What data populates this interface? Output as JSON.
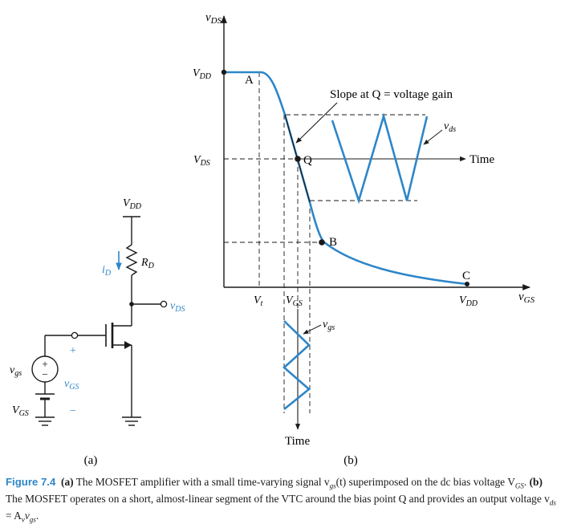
{
  "colors": {
    "blue": "#2e86c8",
    "black": "#1a1a1a"
  },
  "circuit": {
    "vdd_label": "V_DD",
    "rd_label": "R_D",
    "id_label": "i_D",
    "vds_label": "v_DS",
    "vgs_label": "v_GS",
    "vgs_signal_label": "v_gs",
    "vgs_bias_label": "V_GS",
    "plus": "+",
    "minus": "−",
    "panel_label": "(a)"
  },
  "vtc": {
    "y_axis_label": "v_DS",
    "x_axis_label": "v_GS",
    "vdd_y_tick": "V_DD",
    "vds_y_tick": "V_DS",
    "vt_tick": "V_t",
    "vgs_tick": "V_GS",
    "vdd_x_tick": "V_DD",
    "point_a": "A",
    "point_q": "Q",
    "point_b": "B",
    "point_c": "C",
    "slope_annotation": "Slope at Q = voltage gain",
    "vds_signal": "v_ds",
    "time_right": "Time",
    "vgs_signal": "v_gs",
    "time_down": "Time",
    "panel_label": "(b)"
  },
  "caption": {
    "figure_number": "Figure 7.4",
    "part_a_label": "(a)",
    "part_a_text": " The MOSFET amplifier with a small time-varying signal v",
    "part_a_sub": "gs",
    "part_a_text2": "(t) superimposed on the dc bias voltage V",
    "part_a_sub2": "GS",
    "part_a_end": ". ",
    "part_b_label": "(b)",
    "part_b_text": " The MOSFET operates on a short, almost-linear segment of the VTC around the bias point Q and provides an output voltage v",
    "part_b_sub": "ds",
    "part_b_text2": " = A",
    "part_b_sub2": "v",
    "part_b_text3": "v",
    "part_b_sub3": "gs",
    "part_b_end": "."
  }
}
